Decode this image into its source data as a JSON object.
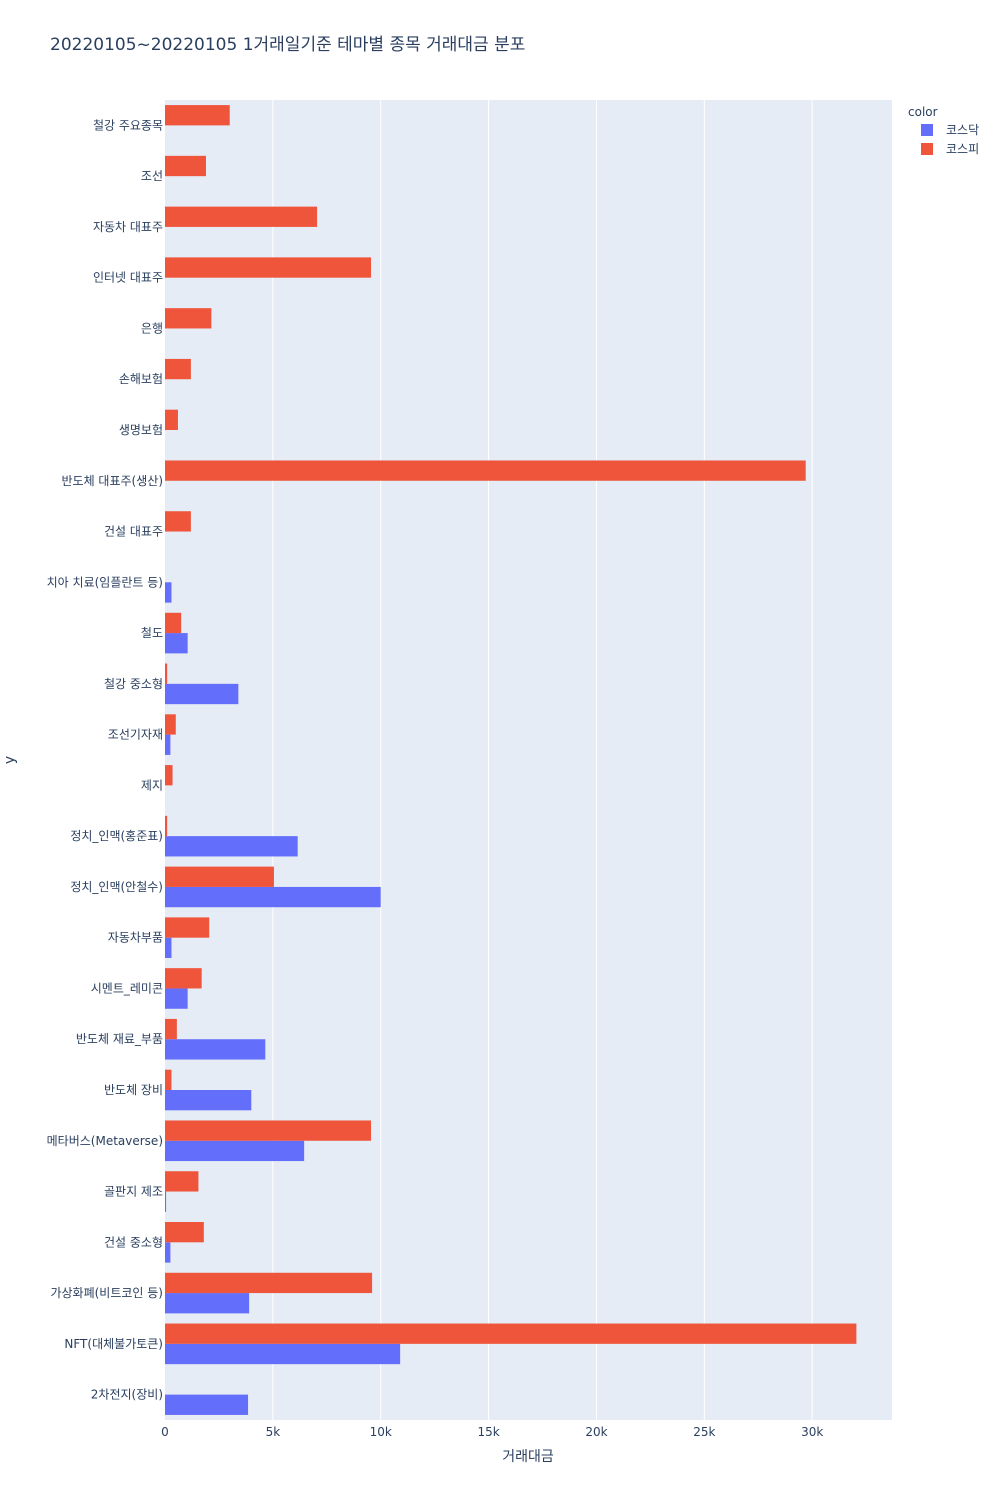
{
  "chart_data": {
    "type": "bar",
    "orientation": "horizontal",
    "barmode": "group",
    "title": "20220105~20220105 1거래일기준 테마별 종목 거래대금 분포",
    "xlabel": "거래대금",
    "ylabel": "y",
    "xlim": [
      0,
      33700
    ],
    "x_ticks": [
      0,
      5000,
      10000,
      15000,
      20000,
      25000,
      30000
    ],
    "x_tick_labels": [
      "0",
      "5k",
      "10k",
      "15k",
      "20k",
      "25k",
      "30k"
    ],
    "grid": true,
    "legend": {
      "title": "color",
      "position": "top-right"
    },
    "categories": [
      "철강 주요종목",
      "조선",
      "자동차 대표주",
      "인터넷 대표주",
      "은행",
      "손해보험",
      "생명보험",
      "반도체 대표주(생산)",
      "건설 대표주",
      "치아 치료(임플란트 등)",
      "철도",
      "철강 중소형",
      "조선기자재",
      "제지",
      "정치_인맥(홍준표)",
      "정치_인맥(안철수)",
      "자동차부품",
      "시멘트_레미콘",
      "반도체 재료_부품",
      "반도체 장비",
      "메타버스(Metaverse)",
      "골판지 제조",
      "건설 중소형",
      "가상화폐(비트코인 등)",
      "NFT(대체불가토큰)",
      "2차전지(장비)"
    ],
    "series": [
      {
        "name": "코스닥",
        "color": "#636efa",
        "values": [
          0,
          0,
          0,
          0,
          0,
          0,
          0,
          0,
          0,
          300,
          1050,
          3400,
          250,
          0,
          6150,
          10000,
          300,
          1050,
          4650,
          4000,
          6450,
          50,
          250,
          3900,
          10900,
          3850
        ]
      },
      {
        "name": "코스피",
        "color": "#ef553b",
        "values": [
          3000,
          1900,
          7050,
          9550,
          2150,
          1200,
          600,
          29700,
          1200,
          0,
          750,
          100,
          500,
          350,
          100,
          5050,
          2050,
          1700,
          550,
          300,
          9550,
          1550,
          1800,
          9600,
          32050,
          0
        ]
      }
    ]
  }
}
